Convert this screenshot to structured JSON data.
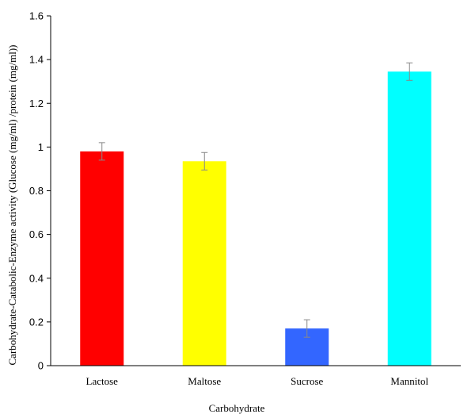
{
  "chart_data": {
    "type": "bar",
    "title": "",
    "xlabel": "Carbohydrate",
    "ylabel": "Carbohydrate-Catabolic-Enzyme activity (Glucose (mg/ml) /protein  (mg/ml))",
    "categories": [
      "Lactose",
      "Maltose",
      "Sucrose",
      "Mannitol"
    ],
    "values": [
      0.98,
      0.935,
      0.17,
      1.345
    ],
    "error": [
      0.04,
      0.04,
      0.04,
      0.04
    ],
    "bar_colors": [
      "#ff0000",
      "#ffff00",
      "#3366ff",
      "#00ffff"
    ],
    "ylim": [
      0,
      1.6
    ],
    "yticks": [
      0,
      0.2,
      0.4,
      0.6,
      0.8,
      1,
      1.2,
      1.4,
      1.6
    ],
    "ytick_labels": [
      "0",
      "0.2",
      "0.4",
      "0.6",
      "0.8",
      "1",
      "1.2",
      "1.4",
      "1.6"
    ],
    "grid": false,
    "legend": "none"
  }
}
